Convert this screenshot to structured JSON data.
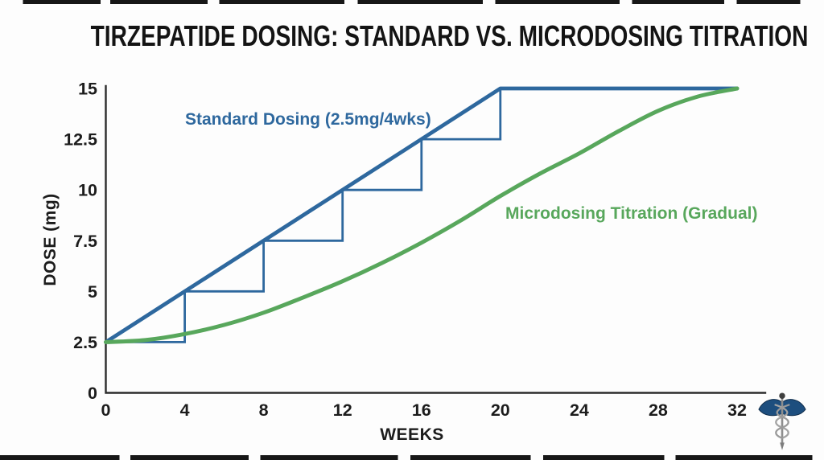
{
  "title": "TIRZEPATIDE DOSING: STANDARD VS. MICRODOSING TITRATION",
  "colors": {
    "standard_blue": "#2e689e",
    "micro_green": "#58a75c",
    "axis": "#2b2b2b",
    "text": "#1c1c1c",
    "title": "#141414"
  },
  "chart_data": {
    "type": "line",
    "title": "TIRZEPATIDE DOSING: STANDARD VS. MICRODOSING TITRATION",
    "xlabel": "WEEKS",
    "ylabel": "DOSE (mg)",
    "xlim": [
      0,
      32
    ],
    "ylim": [
      0,
      15
    ],
    "x_ticks": [
      0,
      4,
      8,
      12,
      16,
      20,
      24,
      28,
      32
    ],
    "y_ticks": [
      0,
      2.5,
      5,
      7.5,
      10,
      12.5,
      15
    ],
    "grid": false,
    "legend_position": "inline-labels",
    "series": [
      {
        "name": "Standard Dosing (2.5mg/4wks)",
        "color": "#2e689e",
        "style": "step-with-trend-line",
        "trend_line": {
          "x": [
            0,
            20,
            32
          ],
          "y": [
            2.5,
            15,
            15
          ]
        },
        "steps": {
          "x": [
            0,
            4,
            4,
            8,
            8,
            12,
            12,
            16,
            16,
            20,
            20
          ],
          "y": [
            2.5,
            2.5,
            5,
            5,
            7.5,
            7.5,
            10,
            10,
            12.5,
            12.5,
            15
          ]
        }
      },
      {
        "name": "Microdosing Titration (Gradual)",
        "color": "#58a75c",
        "style": "smooth",
        "x": [
          0,
          2,
          4,
          6,
          8,
          10,
          12,
          14,
          16,
          18,
          20,
          22,
          24,
          26,
          28,
          30,
          32
        ],
        "y": [
          2.5,
          2.6,
          2.9,
          3.35,
          3.95,
          4.7,
          5.5,
          6.4,
          7.4,
          8.5,
          9.7,
          10.8,
          11.8,
          12.9,
          13.9,
          14.6,
          15
        ]
      }
    ]
  },
  "branding": {
    "logo": "caduceus-icon"
  }
}
